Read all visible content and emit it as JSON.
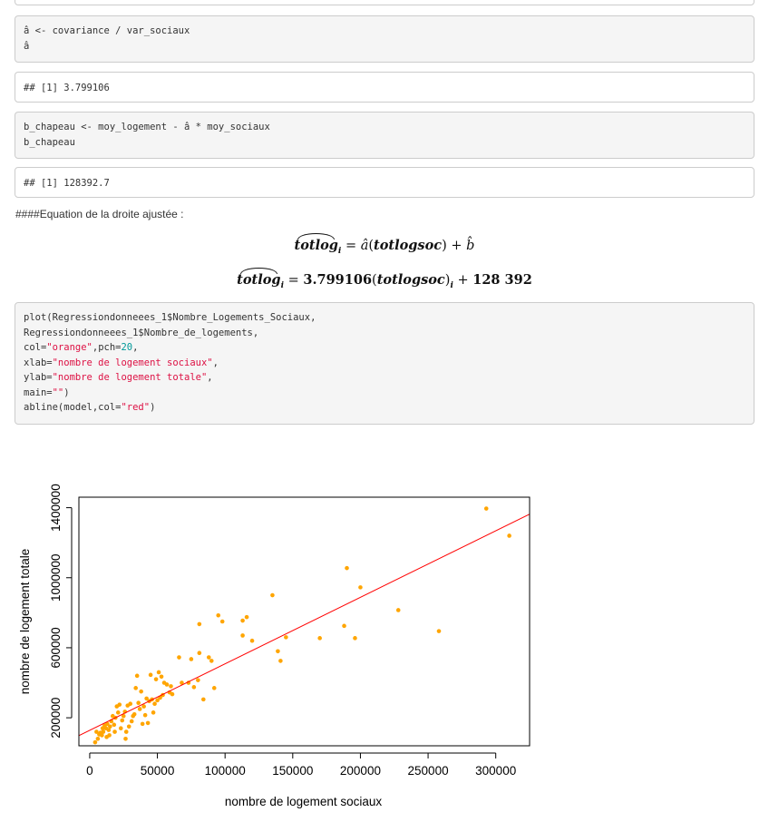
{
  "code_cells": [
    {
      "id": "cell1",
      "lines": [
        [
          {
            "t": "â <- covariance / var_sociaux"
          }
        ],
        [
          {
            "t": "â"
          }
        ]
      ]
    },
    {
      "id": "cell2",
      "lines": [
        [
          {
            "t": "b_chapeau <- moy_logement - â * moy_sociaux"
          }
        ],
        [
          {
            "t": "b_chapeau"
          }
        ]
      ]
    },
    {
      "id": "cell3",
      "lines": [
        [
          {
            "t": "plot(Regressiondonneees_1$Nombre_Logements_Sociaux,"
          }
        ],
        [
          {
            "t": "Regressiondonneees_1$Nombre_de_logements,"
          }
        ],
        [
          {
            "t": "col="
          },
          {
            "t": "\"orange\"",
            "c": "str"
          },
          {
            "t": ",pch="
          },
          {
            "t": "20",
            "c": "num"
          },
          {
            "t": ","
          }
        ],
        [
          {
            "t": "xlab="
          },
          {
            "t": "\"nombre de logement sociaux\"",
            "c": "str"
          },
          {
            "t": ","
          }
        ],
        [
          {
            "t": "ylab="
          },
          {
            "t": "\"nombre de logement totale\"",
            "c": "str"
          },
          {
            "t": ","
          }
        ],
        [
          {
            "t": "main="
          },
          {
            "t": "\"\"",
            "c": "str"
          },
          {
            "t": ")"
          }
        ],
        [
          {
            "t": "abline(model,col="
          },
          {
            "t": "\"red\"",
            "c": "str"
          },
          {
            "t": ")"
          }
        ]
      ]
    }
  ],
  "outputs": {
    "a_hat": "## [1] 3.799106",
    "b_hat": "## [1] 128392.7"
  },
  "heading": "####Equation de la droite ajustée :",
  "equations": {
    "eq1": {
      "lhs": "totlog",
      "sub": "i",
      "eqsign": "=",
      "coef": "â",
      "var": "totlogsoc",
      "plus": "+",
      "intercept": "b̂"
    },
    "eq2": {
      "lhs": "totlog",
      "sub": "i",
      "eqsign": "=",
      "coef": "3.799106",
      "var": "totlogsoc",
      "plus": "+",
      "intercept": "128 392"
    }
  },
  "chart_data": {
    "type": "scatter",
    "xlabel": "nombre de logement sociaux",
    "ylabel": "nombre de logement totale",
    "title": "",
    "xlim": [
      -8000,
      325000
    ],
    "ylim": [
      40000,
      1460000
    ],
    "xticks": [
      0,
      50000,
      100000,
      150000,
      200000,
      250000,
      300000
    ],
    "xtick_labels": [
      "0",
      "50000",
      "100000",
      "150000",
      "200000",
      "250000",
      "300000"
    ],
    "yticks": [
      200000,
      600000,
      1000000,
      1400000
    ],
    "ytick_labels": [
      "200000",
      "600000",
      "1000000",
      "1400000"
    ],
    "grid": false,
    "point_color": "#ffa500",
    "line_color": "#ff0000",
    "fit_line": {
      "slope": 3.799106,
      "intercept": 128392.7
    },
    "points": [
      [
        293000,
        1395000
      ],
      [
        310000,
        1240000
      ],
      [
        190000,
        1055000
      ],
      [
        200000,
        945000
      ],
      [
        135000,
        900000
      ],
      [
        228000,
        815000
      ],
      [
        258000,
        695000
      ],
      [
        188000,
        725000
      ],
      [
        196000,
        655000
      ],
      [
        95000,
        785000
      ],
      [
        98000,
        750000
      ],
      [
        81000,
        735000
      ],
      [
        113000,
        755000
      ],
      [
        116000,
        775000
      ],
      [
        113000,
        670000
      ],
      [
        120000,
        640000
      ],
      [
        139000,
        580000
      ],
      [
        141000,
        525000
      ],
      [
        145000,
        660000
      ],
      [
        170000,
        655000
      ],
      [
        88000,
        545000
      ],
      [
        90000,
        525000
      ],
      [
        81000,
        570000
      ],
      [
        75000,
        535000
      ],
      [
        66000,
        545000
      ],
      [
        92000,
        370000
      ],
      [
        84000,
        305000
      ],
      [
        80000,
        415000
      ],
      [
        73000,
        400000
      ],
      [
        68000,
        400000
      ],
      [
        77000,
        375000
      ],
      [
        35000,
        440000
      ],
      [
        38000,
        350000
      ],
      [
        45000,
        445000
      ],
      [
        49000,
        420000
      ],
      [
        51000,
        460000
      ],
      [
        53000,
        435000
      ],
      [
        55000,
        400000
      ],
      [
        57000,
        390000
      ],
      [
        59000,
        345000
      ],
      [
        60000,
        380000
      ],
      [
        61000,
        335000
      ],
      [
        54000,
        330000
      ],
      [
        52000,
        315000
      ],
      [
        50000,
        300000
      ],
      [
        48000,
        280000
      ],
      [
        46000,
        305000
      ],
      [
        44000,
        295000
      ],
      [
        42000,
        310000
      ],
      [
        40000,
        265000
      ],
      [
        41000,
        215000
      ],
      [
        39000,
        165000
      ],
      [
        36000,
        285000
      ],
      [
        34000,
        370000
      ],
      [
        30000,
        280000
      ],
      [
        28000,
        270000
      ],
      [
        26000,
        235000
      ],
      [
        25000,
        210000
      ],
      [
        24000,
        185000
      ],
      [
        22000,
        275000
      ],
      [
        21000,
        230000
      ],
      [
        20000,
        265000
      ],
      [
        19000,
        200000
      ],
      [
        18000,
        160000
      ],
      [
        17000,
        210000
      ],
      [
        16000,
        180000
      ],
      [
        15000,
        150000
      ],
      [
        14000,
        130000
      ],
      [
        13000,
        165000
      ],
      [
        12000,
        140000
      ],
      [
        11000,
        155000
      ],
      [
        10000,
        120000
      ],
      [
        9000,
        100000
      ],
      [
        8000,
        115000
      ],
      [
        7000,
        105000
      ],
      [
        6000,
        80000
      ],
      [
        5000,
        120000
      ],
      [
        4000,
        60000
      ],
      [
        23000,
        140000
      ],
      [
        27000,
        120000
      ],
      [
        31000,
        180000
      ],
      [
        33000,
        220000
      ],
      [
        29000,
        150000
      ],
      [
        47000,
        230000
      ],
      [
        43000,
        170000
      ],
      [
        37000,
        250000
      ],
      [
        32000,
        210000
      ],
      [
        14500,
        100000
      ],
      [
        18500,
        120000
      ],
      [
        26500,
        80000
      ],
      [
        12500,
        90000
      ],
      [
        9500,
        140000
      ]
    ]
  }
}
